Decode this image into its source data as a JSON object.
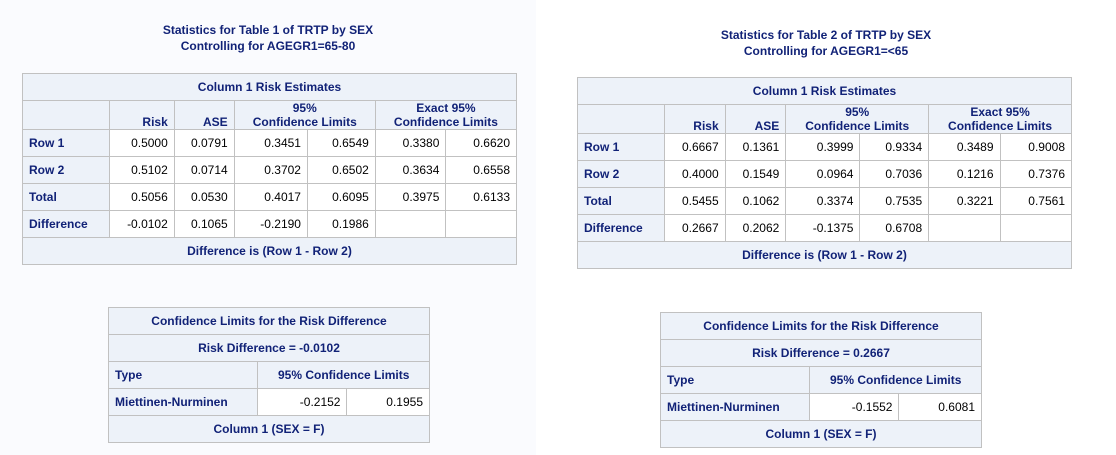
{
  "panels": [
    {
      "title_line1": "Statistics for Table 1 of TRTP by SEX",
      "title_line2": "Controlling for AGEGR1=65-80",
      "risk": {
        "caption": "Column 1 Risk Estimates",
        "headers": {
          "risk": "Risk",
          "ase": "ASE",
          "ci_top": "95%",
          "ci_bottom": "Confidence Limits",
          "exact_top": "Exact 95%",
          "exact_bottom": "Confidence Limits"
        },
        "rows": [
          {
            "label": "Row 1",
            "risk": "0.5000",
            "ase": "0.0791",
            "lcl": "0.3451",
            "ucl": "0.6549",
            "elcl": "0.3380",
            "eucl": "0.6620"
          },
          {
            "label": "Row 2",
            "risk": "0.5102",
            "ase": "0.0714",
            "lcl": "0.3702",
            "ucl": "0.6502",
            "elcl": "0.3634",
            "eucl": "0.6558"
          },
          {
            "label": "Total",
            "risk": "0.5056",
            "ase": "0.0530",
            "lcl": "0.4017",
            "ucl": "0.6095",
            "elcl": "0.3975",
            "eucl": "0.6133"
          },
          {
            "label": "Difference",
            "risk": "-0.0102",
            "ase": "0.1065",
            "lcl": "-0.2190",
            "ucl": "0.1986",
            "elcl": "",
            "eucl": ""
          }
        ],
        "footer": "Difference is (Row 1 - Row 2)"
      },
      "cl": {
        "caption": "Confidence Limits for the Risk Difference",
        "subcaption": "Risk Difference = -0.0102",
        "type_header": "Type",
        "limits_header": "95% Confidence Limits",
        "method": "Miettinen-Nurminen",
        "lower": "-0.2152",
        "upper": "0.1955",
        "footer": "Column 1 (SEX = F)"
      }
    },
    {
      "title_line1": "Statistics for Table 2 of TRTP by SEX",
      "title_line2": "Controlling for AGEGR1=<65",
      "risk": {
        "caption": "Column 1 Risk Estimates",
        "headers": {
          "risk": "Risk",
          "ase": "ASE",
          "ci_top": "95%",
          "ci_bottom": "Confidence Limits",
          "exact_top": "Exact 95%",
          "exact_bottom": "Confidence Limits"
        },
        "rows": [
          {
            "label": "Row 1",
            "risk": "0.6667",
            "ase": "0.1361",
            "lcl": "0.3999",
            "ucl": "0.9334",
            "elcl": "0.3489",
            "eucl": "0.9008"
          },
          {
            "label": "Row 2",
            "risk": "0.4000",
            "ase": "0.1549",
            "lcl": "0.0964",
            "ucl": "0.7036",
            "elcl": "0.1216",
            "eucl": "0.7376"
          },
          {
            "label": "Total",
            "risk": "0.5455",
            "ase": "0.1062",
            "lcl": "0.3374",
            "ucl": "0.7535",
            "elcl": "0.3221",
            "eucl": "0.7561"
          },
          {
            "label": "Difference",
            "risk": "0.2667",
            "ase": "0.2062",
            "lcl": "-0.1375",
            "ucl": "0.6708",
            "elcl": "",
            "eucl": ""
          }
        ],
        "footer": "Difference is (Row 1 - Row 2)"
      },
      "cl": {
        "caption": "Confidence Limits for the Risk Difference",
        "subcaption": "Risk Difference = 0.2667",
        "type_header": "Type",
        "limits_header": "95% Confidence Limits",
        "method": "Miettinen-Nurminen",
        "lower": "-0.1552",
        "upper": "0.6081",
        "footer": "Column 1 (SEX = F)"
      }
    }
  ]
}
